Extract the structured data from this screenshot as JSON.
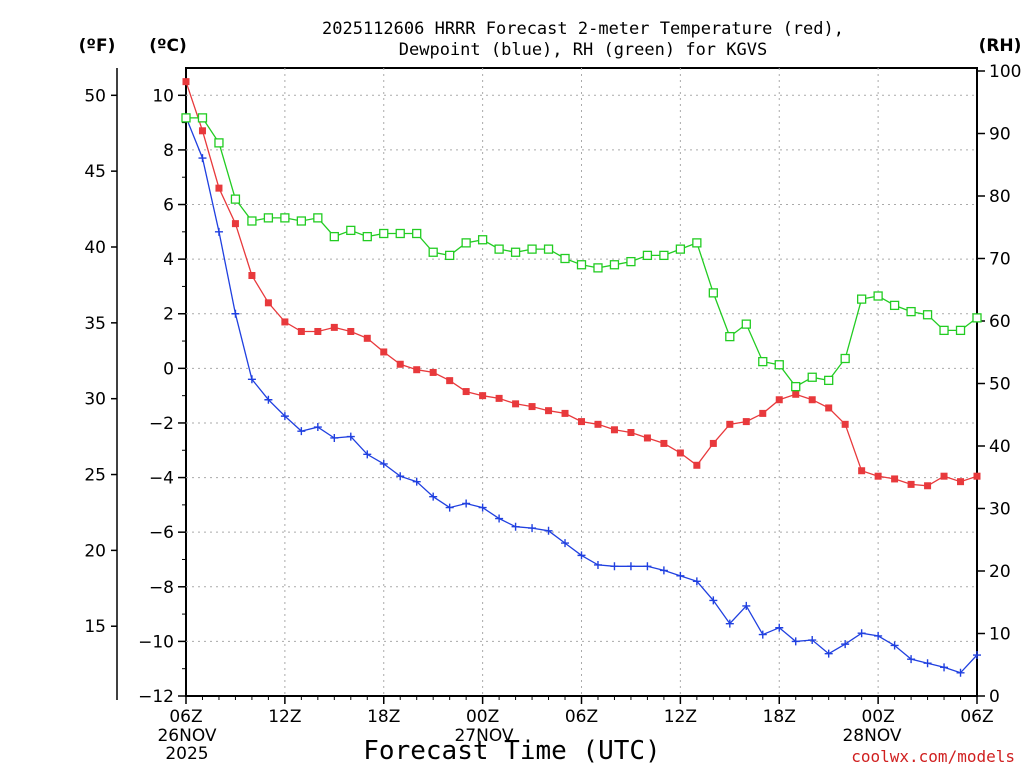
{
  "chart_data": {
    "type": "line",
    "title": "2025112606 HRRR Forecast 2-meter Temperature (red),",
    "subtitle": "Dewpoint (blue), RH (green) for KGVS",
    "xlabel": "Forecast Time (UTC)",
    "credit": "coolwx.com/models",
    "axes": {
      "left_outer": {
        "label": "(ºF)",
        "ticks": [
          "15",
          "20",
          "25",
          "30",
          "35",
          "40",
          "45",
          "50"
        ]
      },
      "left_inner": {
        "label": "(ºC)",
        "ylim": [
          -12,
          11
        ],
        "ticks": [
          "−12",
          "−10",
          "−8",
          "−6",
          "−4",
          "−2",
          "0",
          "2",
          "4",
          "6",
          "8",
          "10"
        ]
      },
      "right": {
        "label": "(RH)",
        "ylim": [
          0,
          100
        ],
        "ticks": [
          "0",
          "10",
          "20",
          "30",
          "40",
          "50",
          "60",
          "70",
          "80",
          "90",
          "100"
        ]
      }
    },
    "x_ticks": [
      "06Z",
      "12Z",
      "18Z",
      "00Z",
      "06Z",
      "12Z",
      "18Z",
      "00Z",
      "06Z"
    ],
    "x_sublabels": [
      {
        "lines": [
          "26NOV",
          "2025"
        ]
      },
      {
        "lines": [
          "27NOV"
        ]
      },
      {
        "lines": [
          "28NOV"
        ]
      }
    ],
    "x_hours": [
      0,
      1,
      2,
      3,
      4,
      5,
      6,
      7,
      8,
      9,
      10,
      11,
      12,
      13,
      14,
      15,
      16,
      17,
      18,
      19,
      20,
      21,
      22,
      23,
      24,
      25,
      26,
      27,
      28,
      29,
      30,
      31,
      32,
      33,
      34,
      35,
      36,
      37,
      38,
      39,
      40,
      41,
      42,
      43,
      44,
      45,
      46,
      47,
      48
    ],
    "series": [
      {
        "name": "Temperature",
        "axis": "celsius",
        "color": "#e8393c",
        "marker": "filled-square",
        "values": [
          10.5,
          8.7,
          6.6,
          5.3,
          3.4,
          2.4,
          1.7,
          1.35,
          1.35,
          1.5,
          1.35,
          1.1,
          0.6,
          0.15,
          -0.05,
          -0.15,
          -0.45,
          -0.85,
          -1.0,
          -1.1,
          -1.3,
          -1.4,
          -1.55,
          -1.65,
          -1.95,
          -2.05,
          -2.25,
          -2.35,
          -2.55,
          -2.75,
          -3.1,
          -3.55,
          -2.75,
          -2.05,
          -1.95,
          -1.65,
          -1.15,
          -0.95,
          -1.15,
          -1.45,
          -2.05,
          -3.75,
          -3.95,
          -4.05,
          -4.25,
          -4.3,
          -3.95,
          -4.15,
          -3.95
        ]
      },
      {
        "name": "Dewpoint",
        "axis": "celsius",
        "color": "#2040e0",
        "marker": "plus",
        "values": [
          9.2,
          7.7,
          5.0,
          2.0,
          -0.4,
          -1.15,
          -1.75,
          -2.3,
          -2.15,
          -2.55,
          -2.5,
          -3.15,
          -3.5,
          -3.95,
          -4.15,
          -4.7,
          -5.1,
          -4.95,
          -5.1,
          -5.5,
          -5.8,
          -5.85,
          -5.95,
          -6.4,
          -6.85,
          -7.2,
          -7.25,
          -7.25,
          -7.25,
          -7.4,
          -7.6,
          -7.8,
          -8.5,
          -9.35,
          -8.7,
          -9.75,
          -9.5,
          -10.0,
          -9.95,
          -10.45,
          -10.1,
          -9.7,
          -9.8,
          -10.15,
          -10.65,
          -10.8,
          -10.95,
          -11.15,
          -10.5
        ]
      },
      {
        "name": "RH",
        "axis": "rh",
        "color": "#22cc22",
        "marker": "open-square",
        "values": [
          92.5,
          92.5,
          88.5,
          79.5,
          76.0,
          76.5,
          76.5,
          76.0,
          76.5,
          73.5,
          74.5,
          73.5,
          74.0,
          74.0,
          74.0,
          71.0,
          70.5,
          72.5,
          73.0,
          71.5,
          71.0,
          71.5,
          71.5,
          70.0,
          69.0,
          68.5,
          69.0,
          69.5,
          70.5,
          70.5,
          71.5,
          72.5,
          64.5,
          57.5,
          59.5,
          53.5,
          53.0,
          49.5,
          51.0,
          50.5,
          54.0,
          63.5,
          64.0,
          62.5,
          61.5,
          61.0,
          58.5,
          58.5,
          60.5
        ]
      }
    ]
  }
}
